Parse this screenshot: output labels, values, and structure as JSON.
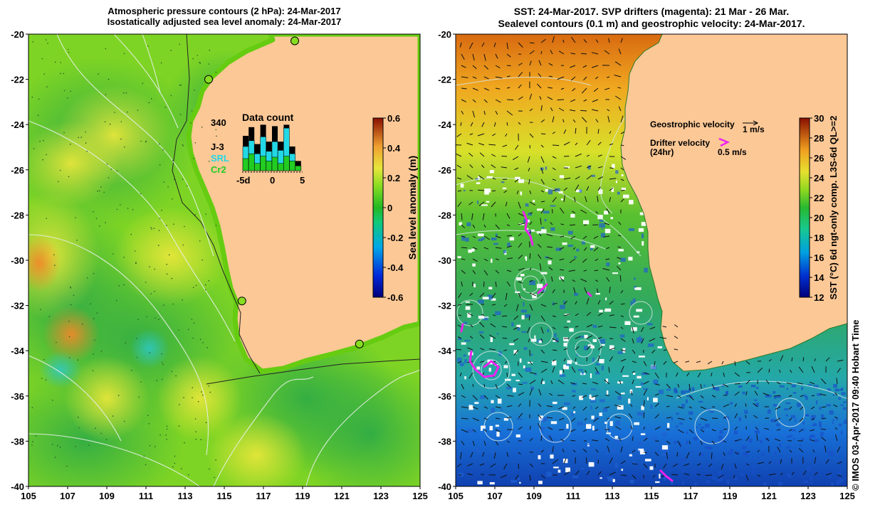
{
  "left_panel": {
    "title_line1": "Atmospheric pressure contours (2 hPa): 24-Mar-2017",
    "title_line2": "Isostatically adjusted sea level anomaly: 24-Mar-2017",
    "x_ticks": [
      "105",
      "107",
      "109",
      "111",
      "113",
      "115",
      "117",
      "119",
      "121",
      "123",
      "125"
    ],
    "y_ticks": [
      "-20",
      "-22",
      "-24",
      "-26",
      "-28",
      "-30",
      "-32",
      "-34",
      "-36",
      "-38",
      "-40"
    ],
    "colorbar": {
      "label": "Sea level anomaly (m)",
      "ticks": [
        "0.6",
        "0.4",
        "0.2",
        "0",
        "-0.2",
        "-0.4",
        "-0.6"
      ],
      "range": [
        -0.6,
        0.6
      ]
    },
    "data_count_inset": {
      "title": "Data count",
      "max_label": "340",
      "legend": [
        {
          "label": "J-3",
          "color": "#000000"
        },
        {
          "label": "SRL",
          "color": "#22d8e6"
        },
        {
          "label": "Cr2",
          "color": "#22cc22"
        }
      ],
      "x_ticks": [
        "-5d",
        "0",
        "5"
      ],
      "bars": [
        {
          "day": -5,
          "total": 0.72,
          "srl": 0.5,
          "cr2": 0.25
        },
        {
          "day": -4,
          "total": 0.9,
          "srl": 0.62,
          "cr2": 0.35
        },
        {
          "day": -3,
          "total": 0.55,
          "srl": 0.35,
          "cr2": 0.15
        },
        {
          "day": -2,
          "total": 0.95,
          "srl": 0.7,
          "cr2": 0.3
        },
        {
          "day": -1,
          "total": 0.6,
          "srl": 0.4,
          "cr2": 0.2
        },
        {
          "day": 0,
          "total": 0.92,
          "srl": 0.6,
          "cr2": 0.28
        },
        {
          "day": 1,
          "total": 0.6,
          "srl": 0.42,
          "cr2": 0.15
        },
        {
          "day": 2,
          "total": 0.95,
          "srl": 0.88,
          "cr2": 0.3
        },
        {
          "day": 3,
          "total": 0.5,
          "srl": 0.35,
          "cr2": 0.2
        },
        {
          "day": 4,
          "total": 0.2,
          "srl": 0.1,
          "cr2": 0.1
        }
      ]
    },
    "tide_gauges": [
      {
        "lon": 118.6,
        "lat": -20.3
      },
      {
        "lon": 114.2,
        "lat": -22.0
      },
      {
        "lon": 115.9,
        "lat": -31.8
      },
      {
        "lon": 121.9,
        "lat": -33.7
      }
    ]
  },
  "right_panel": {
    "title_line1": "SST: 24-Mar-2017. SVP drifters (magenta): 21 Mar - 26 Mar.",
    "title_line2": "Sealevel contours (0.1 m) and geostrophic velocity: 24-Mar-2017.",
    "x_ticks": [
      "105",
      "107",
      "109",
      "111",
      "113",
      "115",
      "117",
      "119",
      "121",
      "123",
      "125"
    ],
    "y_ticks": [
      "-20",
      "-22",
      "-24",
      "-26",
      "-28",
      "-30",
      "-32",
      "-34",
      "-36",
      "-38",
      "-40"
    ],
    "colorbar": {
      "label": "SST (°C) 6d ngt-only comp. L3S-6d QL>=2",
      "ticks": [
        "30",
        "28",
        "26",
        "24",
        "22",
        "20",
        "18",
        "16",
        "14",
        "12"
      ],
      "range": [
        12,
        30
      ]
    },
    "legend": {
      "geo_label": "Geostrophic velocity",
      "geo_scale": "1 m/s",
      "drifter_label_1": "Drifter velocity",
      "drifter_label_2": "(24hr)",
      "drifter_scale": "0.5 m/s"
    }
  },
  "credit": "© IMOS 03-Apr-2017 09:40 Hobart Time"
}
